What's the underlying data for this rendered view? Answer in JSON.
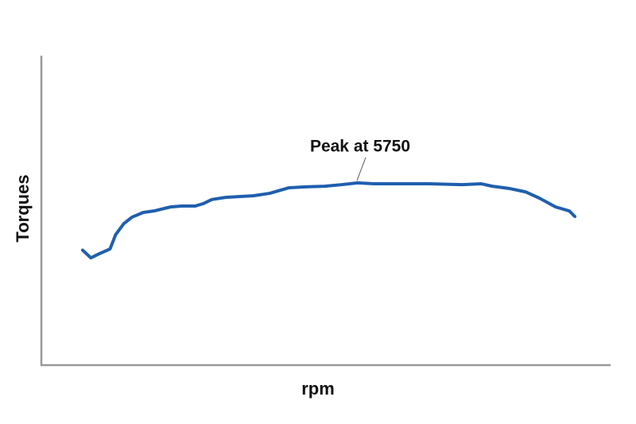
{
  "chart_data": {
    "type": "line",
    "x_label": "rpm",
    "y_label": "Torques",
    "annotation": "Peak at 5750",
    "xlim": [
      0,
      10350
    ],
    "ylim": [
      0,
      100
    ],
    "x": [
      750,
      900,
      1050,
      1250,
      1350,
      1500,
      1650,
      1850,
      2050,
      2350,
      2550,
      2800,
      2950,
      3100,
      3350,
      3650,
      3850,
      4150,
      4500,
      4800,
      5150,
      5450,
      5750,
      6050,
      6450,
      7050,
      7650,
      8000,
      8200,
      8500,
      8800,
      9050,
      9350,
      9600,
      9700
    ],
    "series": [
      {
        "color": "#1f5fae",
        "values": [
          37,
          34.5,
          35.8,
          37.4,
          42,
          45.6,
          47.7,
          49.2,
          49.7,
          51,
          51.3,
          51.3,
          52.1,
          53.4,
          54.1,
          54.4,
          54.6,
          55.4,
          57.2,
          57.5,
          57.7,
          58.2,
          58.8,
          58.5,
          58.5,
          58.5,
          58.2,
          58.5,
          57.7,
          57,
          55.9,
          53.9,
          51,
          49.7,
          47.9
        ]
      }
    ],
    "grid": false
  }
}
